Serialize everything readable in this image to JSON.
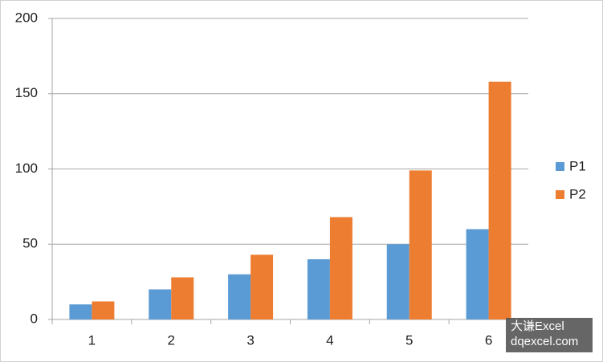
{
  "chart_data": {
    "type": "bar",
    "categories": [
      "1",
      "2",
      "3",
      "4",
      "5",
      "6"
    ],
    "series": [
      {
        "name": "P1",
        "color": "#5b9bd5",
        "values": [
          10,
          20,
          30,
          40,
          50,
          60
        ]
      },
      {
        "name": "P2",
        "color": "#ed7d31",
        "values": [
          12,
          28,
          43,
          68,
          99,
          158
        ]
      }
    ],
    "ylim": [
      0,
      200
    ],
    "yticks": [
      0,
      50,
      100,
      150,
      200
    ],
    "grid": true,
    "legend": "right",
    "watermark": [
      "大谦Excel",
      "dqexcel.com"
    ]
  }
}
